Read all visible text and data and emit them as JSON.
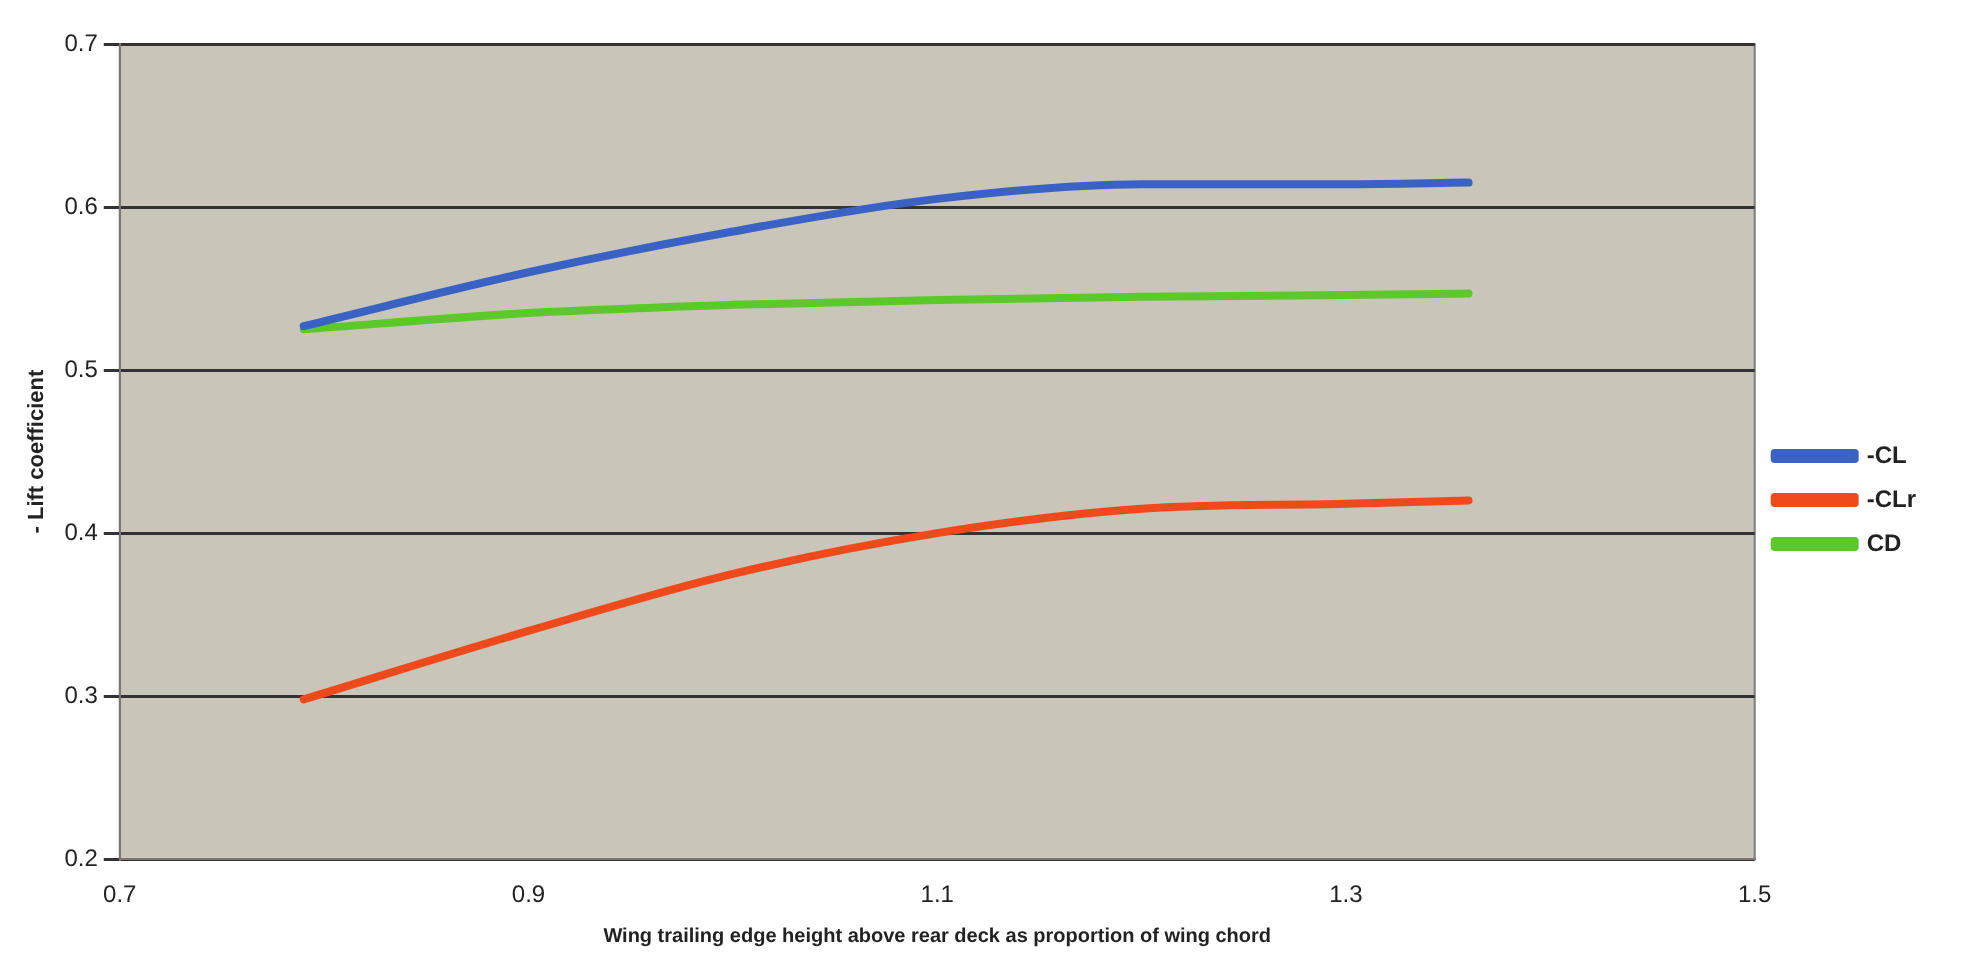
{
  "chart_data": {
    "type": "line",
    "xlabel": "Wing trailing edge height above rear deck as proportion of wing chord",
    "ylabel": "- Lift coefficient",
    "x": [
      0.79,
      0.9,
      1.0,
      1.1,
      1.2,
      1.3,
      1.36
    ],
    "series": [
      {
        "name": "-CL",
        "color": "#3a62c4",
        "values": [
          0.527,
          0.56,
          0.585,
          0.605,
          0.614,
          0.614,
          0.615
        ]
      },
      {
        "name": "-CLr",
        "color": "#f04a1c",
        "values": [
          0.298,
          0.34,
          0.375,
          0.4,
          0.415,
          0.418,
          0.42
        ]
      },
      {
        "name": "CD",
        "color": "#5cc92a",
        "values": [
          0.525,
          0.535,
          0.54,
          0.543,
          0.545,
          0.546,
          0.547
        ]
      }
    ],
    "xlim": [
      0.7,
      1.5
    ],
    "xticks": [
      0.7,
      0.9,
      1.1,
      1.3,
      1.5
    ],
    "ylim": [
      0.2,
      0.7
    ],
    "yticks": [
      0.2,
      0.3,
      0.4,
      0.5,
      0.6,
      0.7
    ],
    "grid": "y",
    "legend": "right",
    "marker": "none",
    "line_style": "solid"
  }
}
